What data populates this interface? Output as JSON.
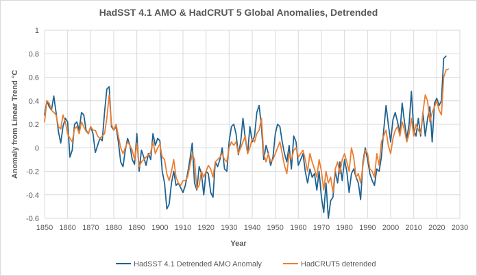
{
  "chart_data": {
    "type": "line",
    "title": "HadSST 4.1 AMO & HadCRUT 5 Global Anomalies, Detrended",
    "xlabel": "Year",
    "ylabel": "Anomaly from Linear Trend °C",
    "xlim": [
      1850,
      2030
    ],
    "ylim": [
      -0.6,
      1.0
    ],
    "x_ticks": [
      "1850",
      "1860",
      "1870",
      "1880",
      "1890",
      "1900",
      "1910",
      "1920",
      "1930",
      "1940",
      "1950",
      "1960",
      "1970",
      "1980",
      "1990",
      "2000",
      "2010",
      "2020",
      "2030"
    ],
    "y_ticks": [
      "-0.6",
      "-0.4",
      "-0.2",
      "0",
      "0.2",
      "0.4",
      "0.6",
      "0.8",
      "1"
    ],
    "grid": true,
    "legend_position": "bottom",
    "series": [
      {
        "name": "HadSST 4.1 Detrended AMO Anomaly",
        "color": "#1f6391",
        "x": [
          1850,
          1851,
          1852,
          1853,
          1854,
          1855,
          1856,
          1857,
          1858,
          1859,
          1860,
          1861,
          1862,
          1863,
          1864,
          1865,
          1866,
          1867,
          1868,
          1869,
          1870,
          1871,
          1872,
          1873,
          1874,
          1875,
          1876,
          1877,
          1878,
          1879,
          1880,
          1881,
          1882,
          1883,
          1884,
          1885,
          1886,
          1887,
          1888,
          1889,
          1890,
          1891,
          1892,
          1893,
          1894,
          1895,
          1896,
          1897,
          1898,
          1899,
          1900,
          1901,
          1902,
          1903,
          1904,
          1905,
          1906,
          1907,
          1908,
          1909,
          1910,
          1911,
          1912,
          1913,
          1914,
          1915,
          1916,
          1917,
          1918,
          1919,
          1920,
          1921,
          1922,
          1923,
          1924,
          1925,
          1926,
          1927,
          1928,
          1929,
          1930,
          1931,
          1932,
          1933,
          1934,
          1935,
          1936,
          1937,
          1938,
          1939,
          1940,
          1941,
          1942,
          1943,
          1944,
          1945,
          1946,
          1947,
          1948,
          1949,
          1950,
          1951,
          1952,
          1953,
          1954,
          1955,
          1956,
          1957,
          1958,
          1959,
          1960,
          1961,
          1962,
          1963,
          1964,
          1965,
          1966,
          1967,
          1968,
          1969,
          1970,
          1971,
          1972,
          1973,
          1974,
          1975,
          1976,
          1977,
          1978,
          1979,
          1980,
          1981,
          1982,
          1983,
          1984,
          1985,
          1986,
          1987,
          1988,
          1989,
          1990,
          1991,
          1992,
          1993,
          1994,
          1995,
          1996,
          1997,
          1998,
          1999,
          2000,
          2001,
          2002,
          2003,
          2004,
          2005,
          2006,
          2007,
          2008,
          2009,
          2010,
          2011,
          2012,
          2013,
          2014,
          2015,
          2016,
          2017,
          2018,
          2019,
          2020,
          2021,
          2022,
          2023,
          2024
        ],
        "values": [
          0.28,
          0.4,
          0.35,
          0.32,
          0.44,
          0.3,
          0.14,
          0.04,
          0.18,
          0.25,
          0.22,
          -0.08,
          -0.02,
          0.2,
          0.22,
          0.15,
          0.3,
          0.28,
          0.15,
          0.12,
          0.18,
          0.12,
          -0.04,
          0.02,
          0.08,
          0.06,
          0.3,
          0.5,
          0.52,
          0.18,
          0.15,
          0.18,
          0.05,
          -0.12,
          -0.16,
          -0.02,
          0.08,
          0.02,
          -0.1,
          -0.14,
          0.12,
          -0.2,
          -0.02,
          -0.08,
          -0.15,
          -0.05,
          -0.1,
          0.12,
          0.02,
          0.08,
          0.06,
          -0.2,
          -0.3,
          -0.52,
          -0.48,
          -0.3,
          -0.2,
          -0.32,
          -0.3,
          -0.34,
          -0.38,
          -0.32,
          -0.22,
          -0.1,
          0.04,
          -0.3,
          -0.36,
          -0.16,
          -0.22,
          -0.4,
          -0.2,
          -0.22,
          -0.38,
          -0.42,
          -0.12,
          -0.16,
          -0.1,
          0.0,
          -0.18,
          -0.2,
          0.05,
          0.18,
          0.2,
          0.12,
          -0.06,
          0.05,
          0.25,
          0.08,
          -0.05,
          0.18,
          0.05,
          0.1,
          0.3,
          0.36,
          0.18,
          -0.1,
          0.02,
          -0.05,
          -0.15,
          -0.08,
          0.12,
          0.2,
          0.18,
          0.05,
          -0.05,
          -0.12,
          0.02,
          -0.18,
          0.1,
          0.05,
          -0.15,
          -0.1,
          -0.05,
          -0.2,
          -0.3,
          -0.18,
          -0.25,
          -0.22,
          -0.36,
          -0.2,
          -0.42,
          -0.55,
          -0.3,
          -0.6,
          -0.45,
          -0.42,
          -0.2,
          -0.3,
          -0.12,
          -0.28,
          -0.1,
          -0.2,
          -0.38,
          -0.22,
          -0.18,
          -0.25,
          -0.3,
          -0.44,
          -0.12,
          0.0,
          -0.1,
          -0.22,
          -0.28,
          -0.32,
          -0.18,
          -0.2,
          -0.08,
          0.15,
          0.36,
          0.2,
          0.05,
          0.24,
          0.3,
          0.22,
          0.12,
          0.38,
          0.22,
          0.08,
          0.2,
          0.48,
          0.15,
          0.1,
          0.25,
          0.1,
          0.3,
          0.1,
          0.25,
          0.35,
          0.05,
          0.38,
          0.42,
          0.36,
          0.4,
          0.76,
          0.78
        ]
      },
      {
        "name": "HadCRUT5 detrended",
        "color": "#ed7d31",
        "x": [
          1850,
          1851,
          1852,
          1853,
          1854,
          1855,
          1856,
          1857,
          1858,
          1859,
          1860,
          1861,
          1862,
          1863,
          1864,
          1865,
          1866,
          1867,
          1868,
          1869,
          1870,
          1871,
          1872,
          1873,
          1874,
          1875,
          1876,
          1877,
          1878,
          1879,
          1880,
          1881,
          1882,
          1883,
          1884,
          1885,
          1886,
          1887,
          1888,
          1889,
          1890,
          1891,
          1892,
          1893,
          1894,
          1895,
          1896,
          1897,
          1898,
          1899,
          1900,
          1901,
          1902,
          1903,
          1904,
          1905,
          1906,
          1907,
          1908,
          1909,
          1910,
          1911,
          1912,
          1913,
          1914,
          1915,
          1916,
          1917,
          1918,
          1919,
          1920,
          1921,
          1922,
          1923,
          1924,
          1925,
          1926,
          1927,
          1928,
          1929,
          1930,
          1931,
          1932,
          1933,
          1934,
          1935,
          1936,
          1937,
          1938,
          1939,
          1940,
          1941,
          1942,
          1943,
          1944,
          1945,
          1946,
          1947,
          1948,
          1949,
          1950,
          1951,
          1952,
          1953,
          1954,
          1955,
          1956,
          1957,
          1958,
          1959,
          1960,
          1961,
          1962,
          1963,
          1964,
          1965,
          1966,
          1967,
          1968,
          1969,
          1970,
          1971,
          1972,
          1973,
          1974,
          1975,
          1976,
          1977,
          1978,
          1979,
          1980,
          1981,
          1982,
          1983,
          1984,
          1985,
          1986,
          1987,
          1988,
          1989,
          1990,
          1991,
          1992,
          1993,
          1994,
          1995,
          1996,
          1997,
          1998,
          1999,
          2000,
          2001,
          2002,
          2003,
          2004,
          2005,
          2006,
          2007,
          2008,
          2009,
          2010,
          2011,
          2012,
          2013,
          2014,
          2015,
          2016,
          2017,
          2018,
          2019,
          2020,
          2021,
          2022,
          2023,
          2024,
          2025
        ],
        "values": [
          0.22,
          0.4,
          0.38,
          0.32,
          0.3,
          0.28,
          0.18,
          0.16,
          0.28,
          0.22,
          0.12,
          0.08,
          0.05,
          0.16,
          0.18,
          0.12,
          0.22,
          0.18,
          0.14,
          0.12,
          0.18,
          0.15,
          0.15,
          0.1,
          0.08,
          0.1,
          0.12,
          0.25,
          0.45,
          0.2,
          0.15,
          0.2,
          0.1,
          0.0,
          -0.05,
          0.0,
          0.05,
          0.02,
          -0.02,
          -0.1,
          0.04,
          -0.16,
          -0.12,
          -0.1,
          -0.08,
          -0.06,
          -0.04,
          0.05,
          -0.05,
          0.0,
          0.03,
          -0.08,
          -0.1,
          -0.22,
          -0.28,
          -0.2,
          -0.1,
          -0.25,
          -0.3,
          -0.32,
          -0.28,
          -0.28,
          -0.25,
          -0.15,
          -0.05,
          -0.1,
          -0.35,
          -0.32,
          -0.2,
          -0.25,
          -0.2,
          -0.15,
          -0.18,
          -0.25,
          -0.12,
          -0.1,
          -0.08,
          -0.05,
          -0.1,
          -0.12,
          0.0,
          0.05,
          0.02,
          0.05,
          -0.05,
          0.0,
          0.05,
          0.1,
          -0.05,
          0.0,
          0.08,
          0.05,
          0.12,
          0.15,
          0.25,
          -0.05,
          -0.12,
          -0.05,
          -0.12,
          -0.1,
          -0.05,
          0.0,
          0.05,
          -0.05,
          -0.15,
          -0.22,
          -0.05,
          -0.1,
          -0.02,
          0.0,
          -0.08,
          -0.05,
          -0.02,
          -0.1,
          -0.2,
          -0.05,
          -0.12,
          -0.18,
          -0.25,
          -0.1,
          -0.2,
          -0.36,
          -0.2,
          -0.3,
          -0.25,
          -0.38,
          -0.18,
          -0.12,
          -0.22,
          -0.1,
          -0.05,
          -0.12,
          -0.2,
          0.0,
          -0.08,
          -0.25,
          -0.22,
          -0.3,
          -0.15,
          -0.02,
          -0.05,
          -0.18,
          -0.2,
          -0.25,
          -0.05,
          -0.15,
          0.05,
          0.1,
          0.15,
          0.02,
          -0.05,
          0.08,
          0.15,
          0.18,
          0.1,
          0.22,
          0.15,
          0.05,
          0.12,
          0.25,
          0.1,
          0.2,
          0.15,
          0.12,
          0.3,
          0.45,
          0.4,
          0.22,
          0.3,
          0.35,
          0.4,
          0.32,
          0.28,
          0.6,
          0.66,
          0.67
        ]
      }
    ]
  }
}
